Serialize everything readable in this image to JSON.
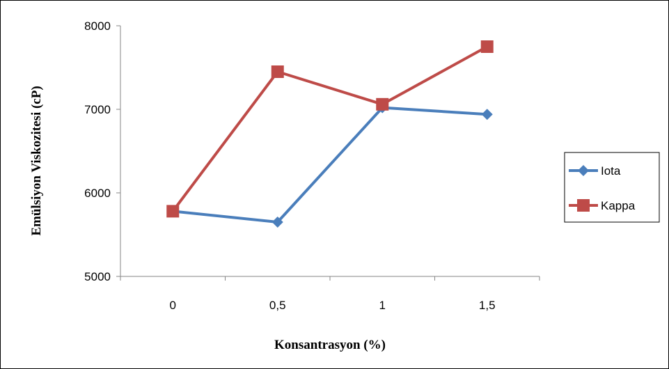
{
  "chart_data": {
    "type": "line",
    "title": "",
    "xlabel": "Konsantrasyon (%)",
    "ylabel": "Emülsiyon Viskozitesi (cP)",
    "categories": [
      "0",
      "0,5",
      "1",
      "1,5"
    ],
    "ylim": [
      5000,
      8000
    ],
    "yticks": [
      "5000",
      "6000",
      "7000",
      "8000"
    ],
    "grid": false,
    "legend_position": "right",
    "series": [
      {
        "name": "Iota",
        "color": "#4A7EBB",
        "marker": "diamond",
        "values": [
          5780,
          5650,
          7020,
          6940
        ]
      },
      {
        "name": "Kappa",
        "color": "#BE4B48",
        "marker": "square",
        "values": [
          5780,
          7450,
          7060,
          7750
        ]
      }
    ]
  }
}
